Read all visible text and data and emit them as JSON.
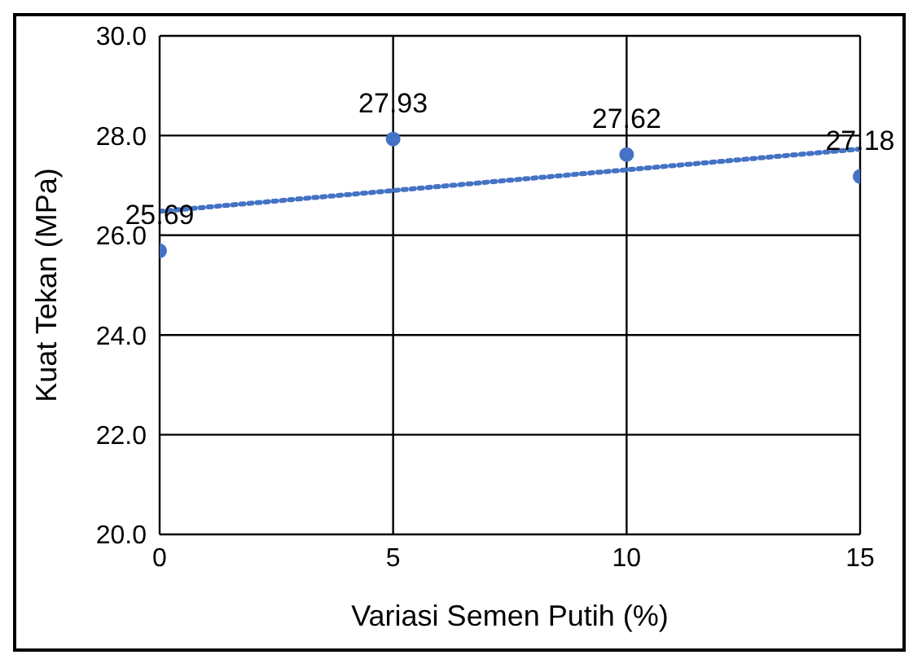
{
  "chart_data": {
    "type": "scatter",
    "xlabel": "Variasi Semen Putih (%)",
    "ylabel": "Kuat Tekan (MPa)",
    "xlim": [
      0,
      15
    ],
    "xticks": [
      0,
      5,
      10,
      15
    ],
    "ylim": [
      20,
      30
    ],
    "yticks": [
      {
        "value": 20,
        "label": "20.0"
      },
      {
        "value": 22,
        "label": "22.0"
      },
      {
        "value": 24,
        "label": "24.0"
      },
      {
        "value": 26,
        "label": "26.0"
      },
      {
        "value": 28,
        "label": "28.0"
      },
      {
        "value": 30,
        "label": "30.0"
      }
    ],
    "grid": true,
    "marker": "circle",
    "series": [
      {
        "color": "#4472c4",
        "x": [
          0,
          5,
          10,
          15
        ],
        "values": [
          25.69,
          27.93,
          27.62,
          27.18
        ],
        "data_labels": true
      },
      {
        "type": "line",
        "color": "#4472c4",
        "line_style": "dotted",
        "marker": "none",
        "x": [
          0,
          15
        ],
        "values": [
          26.48,
          27.73
        ]
      }
    ]
  }
}
